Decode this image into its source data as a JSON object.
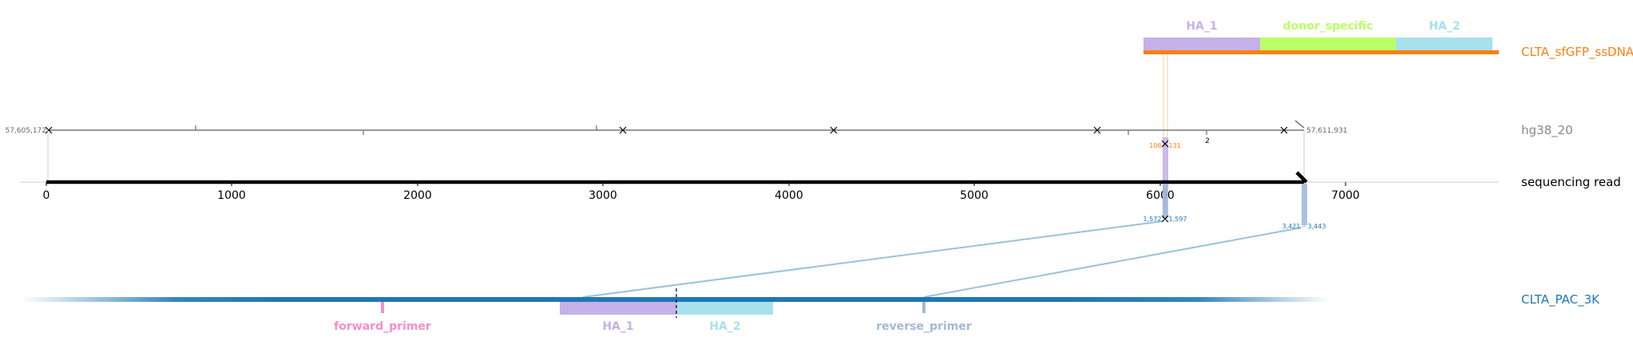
{
  "tracks": {
    "donor": {
      "label": "CLTA_sfGFP_ssDNA",
      "color": "#ff7f0e"
    },
    "genome": {
      "label": "hg38_20",
      "color": "#888888"
    },
    "read": {
      "label": "sequencing read",
      "color": "#000000"
    },
    "amplicon": {
      "label": "CLTA_PAC_3K",
      "color": "#1f77b4"
    }
  },
  "donor_features": [
    {
      "label": "HA_1",
      "color": "#c5b0e8"
    },
    {
      "label": "donor_specific",
      "color": "#bbff66"
    },
    {
      "label": "HA_2",
      "color": "#a6e1ec"
    }
  ],
  "genome_coords": {
    "start": "57,605,172",
    "end": "57,611,931"
  },
  "read_axis": {
    "ticks": [
      "0",
      "1000",
      "2000",
      "3000",
      "4000",
      "5000",
      "6000",
      "7000"
    ]
  },
  "alignments": {
    "donor_span": "108 – 131",
    "amplicon_span_1": "1,572 – 1,597",
    "amplicon_span_2": "3,421 – 3,443",
    "genome_count": "2"
  },
  "amplicon_features": [
    {
      "label": "forward_primer",
      "color": "#f48fc8"
    },
    {
      "label": "HA_1",
      "color": "#c5b0e8"
    },
    {
      "label": "HA_2",
      "color": "#a6e1ec"
    },
    {
      "label": "reverse_primer",
      "color": "#a3b8d8"
    }
  ]
}
